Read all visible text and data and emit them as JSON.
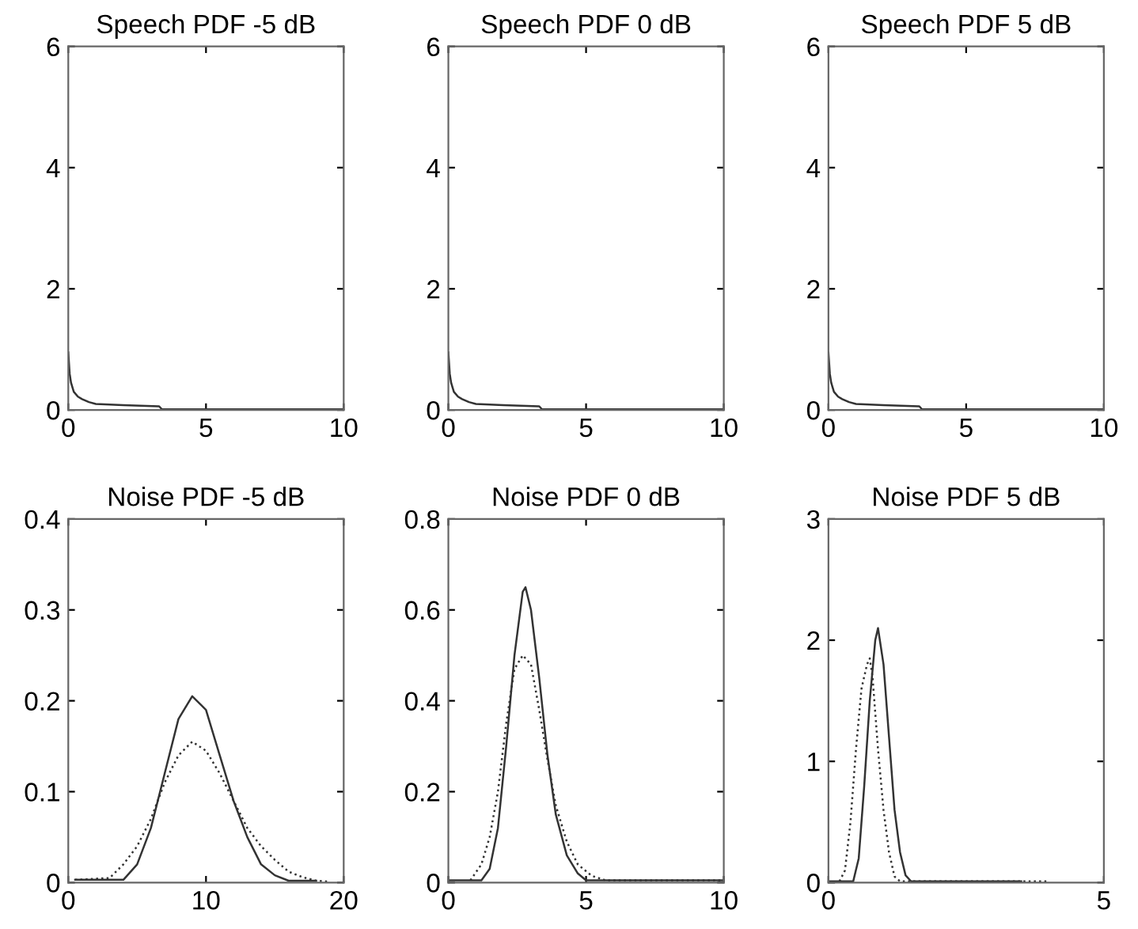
{
  "chart_data": [
    {
      "type": "line",
      "title": "Speech PDF -5 dB",
      "xlim": [
        0,
        10
      ],
      "ylim": [
        0,
        6
      ],
      "xticks": [
        0,
        5,
        10
      ],
      "yticks": [
        0,
        2,
        4,
        6
      ],
      "grid": false,
      "legend": false,
      "series": [
        {
          "color": "#333333",
          "line_style": "solid",
          "x": [
            0,
            0.05,
            0.1,
            0.2,
            0.35,
            0.5,
            0.75,
            1,
            1.5,
            2,
            3.3,
            3.4,
            10
          ],
          "values": [
            0.95,
            0.6,
            0.45,
            0.3,
            0.22,
            0.18,
            0.13,
            0.1,
            0.09,
            0.08,
            0.06,
            0.01,
            0.01
          ]
        }
      ]
    },
    {
      "type": "line",
      "title": "Speech PDF 0 dB",
      "xlim": [
        0,
        10
      ],
      "ylim": [
        0,
        6
      ],
      "xticks": [
        0,
        5,
        10
      ],
      "yticks": [
        0,
        2,
        4,
        6
      ],
      "grid": false,
      "legend": false,
      "series": [
        {
          "color": "#333333",
          "line_style": "solid",
          "x": [
            0,
            0.05,
            0.1,
            0.2,
            0.35,
            0.5,
            0.75,
            1,
            1.5,
            2,
            3.3,
            3.4,
            10
          ],
          "values": [
            0.95,
            0.6,
            0.45,
            0.3,
            0.22,
            0.18,
            0.13,
            0.1,
            0.09,
            0.08,
            0.06,
            0.01,
            0.01
          ]
        }
      ]
    },
    {
      "type": "line",
      "title": "Speech PDF 5 dB",
      "xlim": [
        0,
        10
      ],
      "ylim": [
        0,
        6
      ],
      "xticks": [
        0,
        5,
        10
      ],
      "yticks": [
        0,
        2,
        4,
        6
      ],
      "grid": false,
      "legend": false,
      "series": [
        {
          "color": "#333333",
          "line_style": "solid",
          "x": [
            0,
            0.05,
            0.1,
            0.2,
            0.35,
            0.5,
            0.75,
            1,
            1.5,
            2,
            3.3,
            3.4,
            10
          ],
          "values": [
            0.95,
            0.6,
            0.45,
            0.3,
            0.22,
            0.18,
            0.13,
            0.1,
            0.09,
            0.08,
            0.06,
            0.01,
            0.01
          ]
        }
      ]
    },
    {
      "type": "line",
      "title": "Noise PDF -5 dB",
      "xlim": [
        0,
        20
      ],
      "ylim": [
        0,
        0.4
      ],
      "xticks": [
        0,
        10,
        20
      ],
      "yticks": [
        0,
        0.1,
        0.2,
        0.3,
        0.4
      ],
      "grid": false,
      "legend": false,
      "series": [
        {
          "color": "#333333",
          "line_style": "solid",
          "x": [
            0.5,
            4,
            5,
            6,
            7,
            8,
            9,
            10,
            11,
            12,
            13,
            14,
            15,
            16,
            18
          ],
          "values": [
            0.003,
            0.003,
            0.02,
            0.06,
            0.12,
            0.18,
            0.205,
            0.19,
            0.14,
            0.09,
            0.05,
            0.02,
            0.008,
            0.002,
            0.002
          ]
        },
        {
          "color": "#333333",
          "line_style": "dotted",
          "x": [
            0.5,
            3,
            4,
            5,
            6,
            7,
            8,
            9,
            10,
            11,
            12,
            13,
            14,
            15,
            16,
            17,
            18,
            19
          ],
          "values": [
            0.003,
            0.005,
            0.02,
            0.04,
            0.07,
            0.11,
            0.14,
            0.155,
            0.145,
            0.12,
            0.09,
            0.06,
            0.04,
            0.025,
            0.012,
            0.006,
            0.002,
            0.001
          ]
        }
      ]
    },
    {
      "type": "line",
      "title": "Noise PDF 0 dB",
      "xlim": [
        0,
        10
      ],
      "ylim": [
        0,
        0.8
      ],
      "xticks": [
        0,
        5,
        10
      ],
      "yticks": [
        0,
        0.2,
        0.4,
        0.6,
        0.8
      ],
      "grid": false,
      "legend": false,
      "series": [
        {
          "color": "#333333",
          "line_style": "solid",
          "x": [
            0,
            1.2,
            1.5,
            1.8,
            2.1,
            2.4,
            2.7,
            2.8,
            3.0,
            3.3,
            3.6,
            3.9,
            4.3,
            4.7,
            5,
            10
          ],
          "values": [
            0.005,
            0.005,
            0.03,
            0.12,
            0.3,
            0.5,
            0.64,
            0.65,
            0.6,
            0.45,
            0.28,
            0.15,
            0.06,
            0.02,
            0.005,
            0.005
          ]
        },
        {
          "color": "#333333",
          "line_style": "dotted",
          "x": [
            0.8,
            1.2,
            1.5,
            1.8,
            2.1,
            2.4,
            2.7,
            3.0,
            3.3,
            3.6,
            3.9,
            4.3,
            4.7,
            5.2,
            5.7,
            10
          ],
          "values": [
            0.005,
            0.04,
            0.1,
            0.2,
            0.35,
            0.47,
            0.5,
            0.48,
            0.38,
            0.27,
            0.17,
            0.09,
            0.04,
            0.015,
            0.005,
            0.005
          ]
        }
      ]
    },
    {
      "type": "line",
      "title": "Noise PDF 5 dB",
      "xlim": [
        0,
        5
      ],
      "ylim": [
        0,
        3
      ],
      "xticks": [
        0,
        5
      ],
      "yticks": [
        0,
        1,
        2,
        3
      ],
      "grid": false,
      "legend": false,
      "series": [
        {
          "color": "#333333",
          "line_style": "solid",
          "x": [
            0,
            0.45,
            0.55,
            0.65,
            0.75,
            0.85,
            0.9,
            1.0,
            1.1,
            1.2,
            1.3,
            1.4,
            1.5,
            3.5
          ],
          "values": [
            0.01,
            0.01,
            0.2,
            0.8,
            1.5,
            2.0,
            2.1,
            1.8,
            1.2,
            0.6,
            0.25,
            0.06,
            0.01,
            0.01
          ]
        },
        {
          "color": "#333333",
          "line_style": "dotted",
          "x": [
            0.2,
            0.3,
            0.4,
            0.5,
            0.6,
            0.7,
            0.75,
            0.8,
            0.9,
            1.0,
            1.1,
            1.2,
            1.3,
            4.0
          ],
          "values": [
            0.01,
            0.1,
            0.5,
            1.1,
            1.6,
            1.8,
            1.85,
            1.7,
            1.1,
            0.6,
            0.25,
            0.05,
            0.01,
            0.01
          ]
        }
      ]
    }
  ]
}
